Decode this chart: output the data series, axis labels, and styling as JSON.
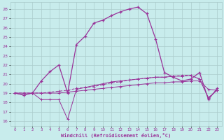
{
  "xlabel": "Windchill (Refroidissement éolien,°C)",
  "bg_color": "#c8ecec",
  "line_color": "#993399",
  "grid_color": "#aacccc",
  "x_ticks": [
    0,
    1,
    2,
    3,
    4,
    5,
    6,
    7,
    8,
    9,
    10,
    11,
    12,
    13,
    14,
    15,
    16,
    17,
    18,
    19,
    20,
    21,
    22,
    23
  ],
  "y_ticks": [
    16,
    17,
    18,
    19,
    20,
    21,
    22,
    23,
    24,
    25,
    26,
    27,
    28
  ],
  "xlim": [
    -0.5,
    23.5
  ],
  "ylim": [
    15.5,
    28.7
  ],
  "series_bottom": [
    19.0,
    19.0,
    19.0,
    19.0,
    19.0,
    19.0,
    19.1,
    19.2,
    19.3,
    19.4,
    19.5,
    19.6,
    19.7,
    19.8,
    19.9,
    20.0,
    20.1,
    20.1,
    20.2,
    20.2,
    20.3,
    20.3,
    19.4,
    19.3
  ],
  "series_mid1": [
    19.0,
    18.8,
    19.0,
    18.3,
    18.3,
    18.3,
    16.2,
    19.4,
    19.6,
    19.8,
    20.0,
    20.2,
    20.3,
    20.4,
    20.5,
    20.6,
    20.7,
    20.7,
    20.8,
    20.8,
    20.9,
    20.5,
    18.5,
    19.3
  ],
  "series_mid2": [
    19.0,
    19.0,
    19.0,
    19.0,
    19.1,
    19.2,
    19.3,
    19.5,
    19.6,
    19.7,
    19.9,
    20.1,
    20.2,
    20.4,
    20.5,
    20.6,
    20.7,
    20.7,
    20.8,
    20.9,
    20.9,
    20.5,
    18.5,
    19.3
  ],
  "series_top": [
    19.0,
    18.8,
    19.0,
    20.3,
    21.3,
    22.0,
    19.0,
    24.2,
    25.1,
    26.5,
    26.8,
    27.3,
    27.7,
    28.0,
    28.2,
    27.5,
    24.8,
    21.2,
    20.7,
    20.3,
    20.5,
    21.2,
    18.3,
    19.5
  ]
}
